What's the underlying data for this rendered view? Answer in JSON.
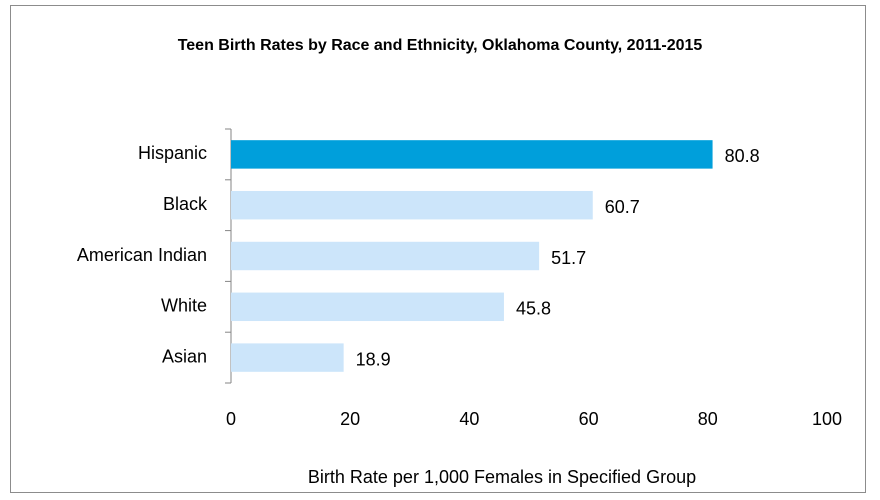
{
  "chart_data": {
    "type": "bar",
    "orientation": "horizontal",
    "title": "Teen Birth Rates by Race and Ethnicity, Oklahoma County, 2011-2015",
    "categories": [
      "Hispanic",
      "Black",
      "American Indian",
      "White",
      "Asian"
    ],
    "values": [
      80.8,
      60.7,
      51.7,
      45.8,
      18.9
    ],
    "colors": [
      "#009fdb",
      "#cce5fa",
      "#cce5fa",
      "#cce5fa",
      "#cce5fa"
    ],
    "xlim": [
      0,
      100
    ],
    "xticks": [
      0,
      20,
      40,
      60,
      80,
      100
    ],
    "xlabel": "Birth Rate per 1,000 Females in Specified Group",
    "grid": false
  }
}
